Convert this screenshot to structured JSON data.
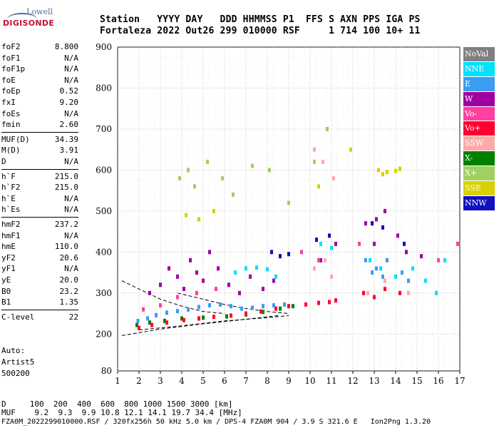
{
  "logo": {
    "line1": "Lowell",
    "line2": "DIGISONDE"
  },
  "header": {
    "line1": "Station   YYYY DAY   DDD HHMMSS P1  FFS S AXN PPS IGA PS",
    "line2": "Fortaleza 2022 Out26 299 010000 RSF     1 714 100 10+ 11"
  },
  "params_groups": [
    [
      {
        "label": "foF2",
        "value": "8.800"
      },
      {
        "label": "foF1",
        "value": "N/A"
      },
      {
        "label": "foF1p",
        "value": "N/A"
      },
      {
        "label": "foE",
        "value": "N/A"
      },
      {
        "label": "foEp",
        "value": "0.52"
      },
      {
        "label": "fxI",
        "value": "9.20"
      },
      {
        "label": "foEs",
        "value": "N/A"
      },
      {
        "label": "fmin",
        "value": "2.60"
      }
    ],
    [
      {
        "label": "MUF(D)",
        "value": "34.39"
      },
      {
        "label": "M(D)",
        "value": "3.91"
      },
      {
        "label": "D",
        "value": "N/A"
      }
    ],
    [
      {
        "label": "h`F",
        "value": "215.0"
      },
      {
        "label": "h`F2",
        "value": "215.0"
      },
      {
        "label": "h`E",
        "value": "N/A"
      },
      {
        "label": "h`Es",
        "value": "N/A"
      }
    ],
    [
      {
        "label": "hmF2",
        "value": "237.2"
      },
      {
        "label": "hmF1",
        "value": "N/A"
      },
      {
        "label": "hmE",
        "value": "110.0"
      },
      {
        "label": "yF2",
        "value": "20.6"
      },
      {
        "label": "yF1",
        "value": "N/A"
      },
      {
        "label": "yE",
        "value": "20.0"
      },
      {
        "label": "B0",
        "value": "23.2"
      },
      {
        "label": "B1",
        "value": "1.35"
      }
    ],
    [
      {
        "label": "C-level",
        "value": "22"
      }
    ]
  ],
  "auto": {
    "line1": "Auto:",
    "line2": "Artist5",
    "line3": "500200"
  },
  "bottom": {
    "d_line": "D     100  200  400  600  800 1000 1500 3000 [km]",
    "muf_line": "MUF    9.2  9.3  9.9 10.8 12.1 14.1 19.7 34.4 [MHz]",
    "footer": "FZA0M_2022299010000.RSF / 320fx256h 50 kHz 5.0 km / DPS-4 FZA0M 904 / 3.9 S 321.6 E   Ion2Png 1.3.20"
  },
  "legend": [
    {
      "label": "NoVal",
      "color": "#808080"
    },
    {
      "label": "NNE",
      "color": "#00e0ff"
    },
    {
      "label": "E",
      "color": "#3c9cf0"
    },
    {
      "label": "W",
      "color": "#a000a0"
    },
    {
      "label": "Vo-",
      "color": "#ff40a0"
    },
    {
      "label": "Vo+",
      "color": "#ff0030"
    },
    {
      "label": "SSW",
      "color": "#ffa8a8"
    },
    {
      "label": "X-",
      "color": "#008000"
    },
    {
      "label": "X+",
      "color": "#a0d060"
    },
    {
      "label": "SSE",
      "color": "#d8d000"
    },
    {
      "label": "NNW",
      "color": "#1010c0"
    }
  ],
  "chart_data": {
    "type": "scatter",
    "title": "",
    "xlabel": "",
    "ylabel": "",
    "xlim": [
      1,
      17
    ],
    "ylim": [
      80,
      900
    ],
    "x_ticks": [
      1,
      2,
      3,
      4,
      5,
      6,
      7,
      8,
      9,
      10,
      11,
      12,
      13,
      14,
      15,
      16,
      17
    ],
    "y_ticks": [
      80,
      200,
      300,
      400,
      500,
      600,
      700,
      800,
      900
    ],
    "grid": true,
    "series": [
      {
        "name": "X-",
        "points": [
          [
            1.9,
            222
          ],
          [
            2.5,
            228
          ],
          [
            3.2,
            232
          ],
          [
            4.0,
            238
          ],
          [
            5.0,
            240
          ],
          [
            6.1,
            243
          ],
          [
            7.0,
            248
          ],
          [
            7.8,
            254
          ],
          [
            8.6,
            262
          ],
          [
            9.2,
            268
          ]
        ]
      },
      {
        "name": "E",
        "points": [
          [
            1.95,
            232
          ],
          [
            2.4,
            238
          ],
          [
            2.8,
            246
          ],
          [
            3.3,
            252
          ],
          [
            3.8,
            256
          ],
          [
            4.3,
            260
          ],
          [
            4.8,
            266
          ],
          [
            5.3,
            270
          ],
          [
            5.8,
            272
          ],
          [
            6.3,
            268
          ],
          [
            6.8,
            262
          ],
          [
            7.3,
            264
          ],
          [
            7.8,
            268
          ],
          [
            8.3,
            270
          ],
          [
            8.8,
            272
          ],
          [
            13.1,
            360
          ],
          [
            13.4,
            340
          ],
          [
            13.6,
            380
          ],
          [
            14.3,
            350
          ],
          [
            14.6,
            330
          ],
          [
            12.6,
            380
          ],
          [
            12.9,
            350
          ]
        ]
      },
      {
        "name": "Vo+",
        "points": [
          [
            2.0,
            215
          ],
          [
            2.6,
            222
          ],
          [
            3.3,
            228
          ],
          [
            4.1,
            234
          ],
          [
            4.8,
            238
          ],
          [
            5.5,
            242
          ],
          [
            6.3,
            245
          ],
          [
            7.0,
            250
          ],
          [
            7.7,
            255
          ],
          [
            8.4,
            262
          ],
          [
            9.0,
            268
          ],
          [
            9.8,
            272
          ],
          [
            10.4,
            276
          ],
          [
            10.9,
            278
          ],
          [
            11.2,
            282
          ],
          [
            12.5,
            300
          ],
          [
            13.0,
            290
          ],
          [
            13.5,
            310
          ],
          [
            14.2,
            300
          ]
        ]
      },
      {
        "name": "W",
        "points": [
          [
            2.5,
            300
          ],
          [
            3.0,
            320
          ],
          [
            3.4,
            360
          ],
          [
            3.8,
            340
          ],
          [
            4.1,
            310
          ],
          [
            4.4,
            380
          ],
          [
            4.7,
            350
          ],
          [
            5.0,
            330
          ],
          [
            5.3,
            400
          ],
          [
            5.7,
            360
          ],
          [
            6.2,
            320
          ],
          [
            6.7,
            300
          ],
          [
            7.2,
            340
          ],
          [
            7.8,
            310
          ],
          [
            8.3,
            330
          ],
          [
            11.2,
            420
          ],
          [
            12.6,
            470
          ],
          [
            13.1,
            480
          ],
          [
            13.5,
            500
          ],
          [
            14.1,
            440
          ],
          [
            14.5,
            400
          ],
          [
            15.2,
            390
          ],
          [
            10.5,
            380
          ],
          [
            13.0,
            420
          ]
        ]
      },
      {
        "name": "NNE",
        "points": [
          [
            6.5,
            350
          ],
          [
            7.0,
            360
          ],
          [
            7.5,
            362
          ],
          [
            8.0,
            358
          ],
          [
            8.4,
            340
          ],
          [
            10.5,
            420
          ],
          [
            11.0,
            410
          ],
          [
            12.8,
            380
          ],
          [
            13.3,
            360
          ],
          [
            14.0,
            340
          ],
          [
            14.8,
            360
          ],
          [
            15.4,
            330
          ],
          [
            15.9,
            300
          ],
          [
            16.3,
            380
          ]
        ]
      },
      {
        "name": "NNW",
        "points": [
          [
            8.2,
            400
          ],
          [
            8.6,
            390
          ],
          [
            9.0,
            395
          ],
          [
            10.3,
            430
          ],
          [
            10.9,
            440
          ],
          [
            12.9,
            470
          ],
          [
            13.4,
            460
          ],
          [
            14.4,
            420
          ]
        ]
      },
      {
        "name": "SSW",
        "points": [
          [
            10.2,
            650
          ],
          [
            10.6,
            620
          ],
          [
            11.1,
            580
          ],
          [
            10.2,
            360
          ],
          [
            10.7,
            380
          ],
          [
            11.0,
            340
          ],
          [
            12.7,
            300
          ],
          [
            13.5,
            330
          ],
          [
            14.6,
            300
          ]
        ]
      },
      {
        "name": "SSE",
        "points": [
          [
            13.2,
            600
          ],
          [
            13.4,
            590
          ],
          [
            13.6,
            595
          ],
          [
            14.0,
            598
          ],
          [
            14.2,
            603
          ],
          [
            11.9,
            650
          ],
          [
            10.4,
            560
          ],
          [
            4.2,
            490
          ],
          [
            4.8,
            480
          ],
          [
            5.5,
            500
          ]
        ]
      },
      {
        "name": "X+",
        "points": [
          [
            3.9,
            580
          ],
          [
            4.3,
            600
          ],
          [
            4.6,
            560
          ],
          [
            5.2,
            620
          ],
          [
            5.9,
            580
          ],
          [
            6.4,
            540
          ],
          [
            7.3,
            610
          ],
          [
            8.1,
            600
          ],
          [
            9.0,
            520
          ],
          [
            10.2,
            620
          ],
          [
            10.8,
            700
          ]
        ]
      },
      {
        "name": "Vo-",
        "points": [
          [
            2.2,
            260
          ],
          [
            3.0,
            270
          ],
          [
            3.8,
            290
          ],
          [
            4.7,
            300
          ],
          [
            5.6,
            310
          ],
          [
            9.6,
            400
          ],
          [
            10.4,
            380
          ],
          [
            12.3,
            420
          ],
          [
            16.0,
            380
          ],
          [
            16.9,
            420
          ]
        ]
      }
    ],
    "trace_lines": [
      {
        "points": [
          [
            1.2,
            195
          ],
          [
            3.0,
            212
          ],
          [
            5.0,
            225
          ],
          [
            7.0,
            236
          ],
          [
            8.5,
            245
          ]
        ]
      },
      {
        "points": [
          [
            2.0,
            210
          ],
          [
            4.0,
            220
          ],
          [
            6.0,
            232
          ],
          [
            8.0,
            240
          ],
          [
            9.0,
            245
          ]
        ]
      },
      {
        "points": [
          [
            1.2,
            330
          ],
          [
            2.0,
            310
          ],
          [
            3.0,
            285
          ],
          [
            4.0,
            268
          ],
          [
            5.0,
            255
          ],
          [
            6.0,
            250
          ]
        ]
      },
      {
        "points": [
          [
            3.8,
            300
          ],
          [
            5.0,
            285
          ],
          [
            6.0,
            272
          ],
          [
            7.0,
            262
          ],
          [
            8.0,
            255
          ],
          [
            9.0,
            250
          ]
        ]
      }
    ]
  }
}
